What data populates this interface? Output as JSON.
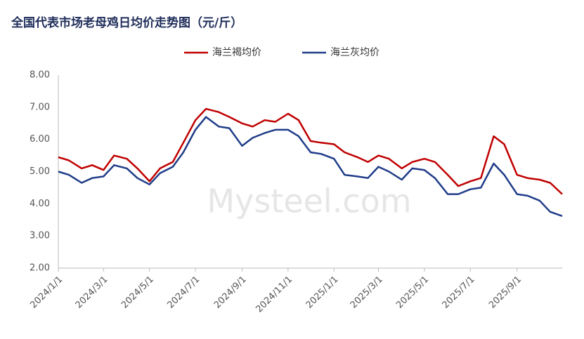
{
  "chart_data": {
    "type": "line",
    "title": "全国代表市场老母鸡日均价走势图（元/斤）",
    "watermark": "Mysteel.com",
    "x": [
      "2024/1/1",
      "2024/1/15",
      "2024/2/1",
      "2024/2/15",
      "2024/3/1",
      "2024/3/15",
      "2024/4/1",
      "2024/4/15",
      "2024/5/1",
      "2024/5/15",
      "2024/6/1",
      "2024/6/15",
      "2024/7/1",
      "2024/7/15",
      "2024/8/1",
      "2024/8/15",
      "2024/9/1",
      "2024/9/15",
      "2024/10/1",
      "2024/10/15",
      "2024/11/1",
      "2024/11/15",
      "2024/12/1",
      "2024/12/15",
      "2025/1/1",
      "2025/1/15",
      "2025/2/1",
      "2025/2/15",
      "2025/3/1",
      "2025/3/15",
      "2025/4/1",
      "2025/4/15",
      "2025/5/1",
      "2025/5/15",
      "2025/6/1",
      "2025/6/15",
      "2025/7/1",
      "2025/7/15",
      "2025/8/1",
      "2025/8/15",
      "2025/9/1",
      "2025/9/15",
      "2025/10/1",
      "2025/10/15",
      "2025/10/31"
    ],
    "series": [
      {
        "name": "海兰褐均价",
        "color": "#c00000",
        "values": [
          5.45,
          5.35,
          5.1,
          5.2,
          5.05,
          5.5,
          5.4,
          5.1,
          4.7,
          5.1,
          5.3,
          5.9,
          6.6,
          6.95,
          6.85,
          6.7,
          6.5,
          6.4,
          6.6,
          6.55,
          6.8,
          6.6,
          5.95,
          5.9,
          5.85,
          5.6,
          5.45,
          5.3,
          5.5,
          5.4,
          5.1,
          5.3,
          5.4,
          5.3,
          4.9,
          4.55,
          4.7,
          4.8,
          6.1,
          5.85,
          4.9,
          4.8,
          4.75,
          4.65,
          4.3
        ]
      },
      {
        "name": "海兰灰均价",
        "color": "#1f3c88",
        "values": [
          5.0,
          4.9,
          4.65,
          4.8,
          4.85,
          5.2,
          5.1,
          4.8,
          4.6,
          4.95,
          5.15,
          5.6,
          6.3,
          6.7,
          6.4,
          6.35,
          5.8,
          6.05,
          6.2,
          6.3,
          6.3,
          6.1,
          5.6,
          5.55,
          5.4,
          4.9,
          4.85,
          4.8,
          5.15,
          5.0,
          4.75,
          5.1,
          5.05,
          4.8,
          4.3,
          4.3,
          4.45,
          4.5,
          5.25,
          4.9,
          4.3,
          4.25,
          4.1,
          3.75,
          3.62
        ]
      }
    ],
    "xlim": [
      "2024/1/1",
      "2025/10/31"
    ],
    "xticks": [
      "2024/1/1",
      "2024/3/1",
      "2024/5/1",
      "2024/7/1",
      "2024/9/1",
      "2024/11/1",
      "2025/1/1",
      "2025/3/1",
      "2025/5/1",
      "2025/7/1",
      "2025/9/1"
    ],
    "ylim": [
      2,
      8
    ],
    "yticks": [
      {
        "value": 2,
        "label": "2.00"
      },
      {
        "value": 3,
        "label": "3.00"
      },
      {
        "value": 4,
        "label": "4.00"
      },
      {
        "value": 5,
        "label": "5.00"
      },
      {
        "value": 6,
        "label": "6.00"
      },
      {
        "value": 7,
        "label": "7.00"
      },
      {
        "value": 8,
        "label": "8.00"
      }
    ],
    "grid": false,
    "legend": "top"
  }
}
